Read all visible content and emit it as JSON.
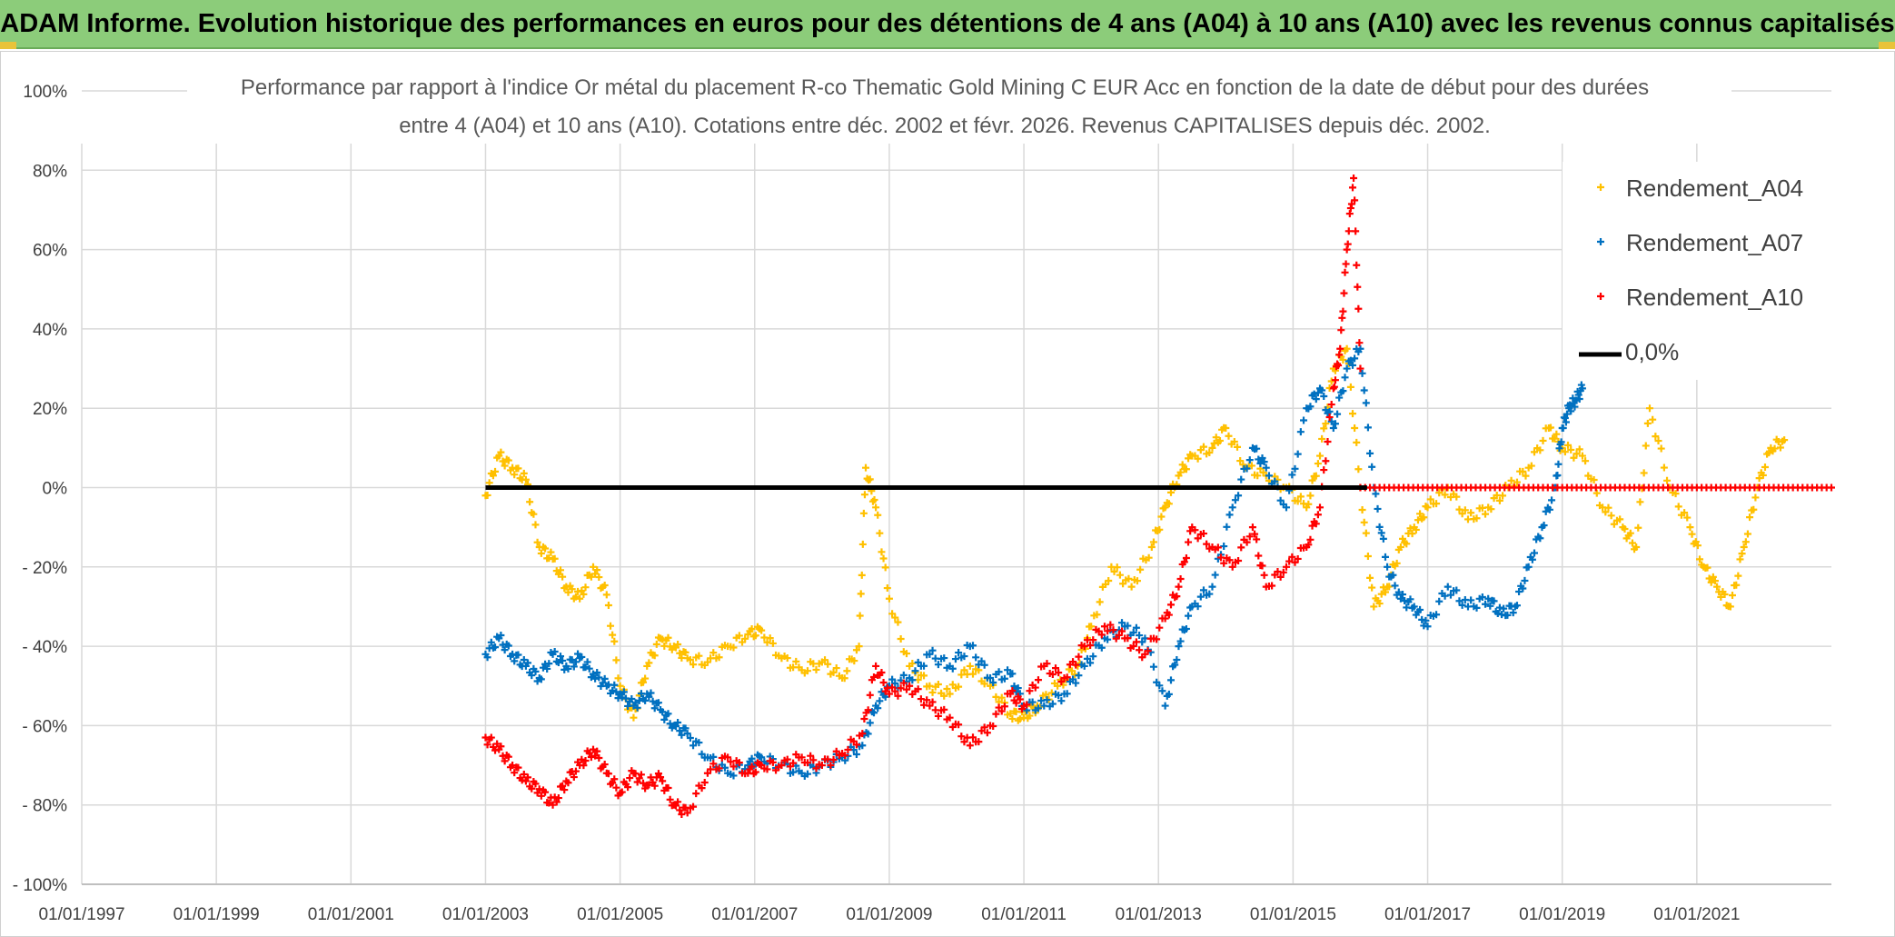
{
  "header": {
    "banner": "ADAM Informe. Evolution historique des performances en euros pour des détentions de 4 ans (A04) à 10 ans (A10) avec les revenus connus capitalisés"
  },
  "colors": {
    "a04": "#ffc000",
    "a07": "#0070c0",
    "a10": "#ff0000",
    "zero": "#000000",
    "banner": "#8ccc7a",
    "grid": "#d9d9d9"
  },
  "chart_data": {
    "type": "scatter",
    "title_lines": [
      "Performance par rapport à l'indice Or métal  du placement R-co Thematic Gold Mining C EUR Acc en fonction de la date de début pour des durées",
      "entre 4 (A04) et 10 ans (A10). Cotations entre déc. 2002 et févr. 2026. Revenus CAPITALISES depuis déc. 2002."
    ],
    "xlim": [
      1997.0,
      2023.0
    ],
    "ylim": [
      -100,
      100
    ],
    "x_ticks": [
      1997,
      1999,
      2001,
      2003,
      2005,
      2007,
      2009,
      2011,
      2013,
      2015,
      2017,
      2019,
      2021
    ],
    "x_tick_labels": [
      "01/01/1997",
      "01/01/1999",
      "01/01/2001",
      "01/01/2003",
      "01/01/2005",
      "01/01/2007",
      "01/01/2009",
      "01/01/2011",
      "01/01/2013",
      "01/01/2015",
      "01/01/2017",
      "01/01/2019",
      "01/01/2021"
    ],
    "y_ticks": [
      100,
      80,
      60,
      40,
      20,
      0,
      -20,
      -40,
      -60,
      -80,
      -100
    ],
    "y_tick_labels": [
      "100%",
      "80%",
      "60%",
      "40%",
      "20%",
      "0%",
      "- 20%",
      "- 40%",
      "- 60%",
      "- 80%",
      "- 100%"
    ],
    "legend": [
      {
        "label": "Rendement_A04",
        "key": "a04",
        "marker": "plus"
      },
      {
        "label": "Rendement_A07",
        "key": "a07",
        "marker": "plus"
      },
      {
        "label": "Rendement_A10",
        "key": "a10",
        "marker": "plus"
      },
      {
        "label": "0,0%",
        "key": "zero",
        "marker": "line"
      }
    ],
    "series": [
      {
        "name": "Rendement_A04",
        "key": "a04",
        "x": [
          2003.0,
          2003.2,
          2003.4,
          2003.6,
          2003.8,
          2004.0,
          2004.2,
          2004.4,
          2004.6,
          2004.8,
          2005.0,
          2005.2,
          2005.4,
          2005.6,
          2005.8,
          2006.0,
          2006.3,
          2006.6,
          2006.9,
          2007.1,
          2007.4,
          2007.7,
          2008.0,
          2008.3,
          2008.55,
          2008.65,
          2008.8,
          2009.0,
          2009.3,
          2009.6,
          2009.9,
          2010.2,
          2010.5,
          2010.8,
          2011.0,
          2011.2,
          2011.5,
          2011.8,
          2012.0,
          2012.3,
          2012.6,
          2012.9,
          2013.1,
          2013.3,
          2013.5,
          2013.8,
          2014.0,
          2014.3,
          2014.6,
          2014.9,
          2015.2,
          2015.4,
          2015.6,
          2015.8,
          2016.0,
          2016.2,
          2016.4,
          2016.6,
          2016.8,
          2017.0,
          2017.3,
          2017.6,
          2017.9,
          2018.2,
          2018.5,
          2018.8,
          2019.0,
          2019.3,
          2019.6,
          2019.9,
          2020.1,
          2020.3,
          2020.6,
          2020.9,
          2021.1,
          2021.3,
          2021.5,
          2021.7,
          2021.9,
          2022.1,
          2022.3
        ],
        "y": [
          -2,
          8,
          5,
          2,
          -15,
          -18,
          -25,
          -28,
          -20,
          -27,
          -50,
          -58,
          -45,
          -38,
          -40,
          -43,
          -44,
          -40,
          -37,
          -36,
          -43,
          -46,
          -44,
          -48,
          -40,
          5,
          -5,
          -28,
          -45,
          -50,
          -52,
          -45,
          -50,
          -57,
          -58,
          -55,
          -50,
          -45,
          -35,
          -20,
          -25,
          -15,
          -5,
          3,
          8,
          10,
          15,
          5,
          3,
          0,
          -5,
          8,
          30,
          35,
          0,
          -30,
          -25,
          -15,
          -10,
          -5,
          0,
          -8,
          -5,
          0,
          5,
          15,
          10,
          8,
          -5,
          -10,
          -15,
          20,
          0,
          -10,
          -20,
          -25,
          -30,
          -15,
          0,
          10,
          12
        ]
      },
      {
        "name": "Rendement_A07",
        "key": "a07",
        "x": [
          2003.0,
          2003.2,
          2003.4,
          2003.6,
          2003.8,
          2004.0,
          2004.2,
          2004.4,
          2004.6,
          2004.8,
          2005.0,
          2005.2,
          2005.4,
          2005.6,
          2005.8,
          2006.0,
          2006.3,
          2006.6,
          2006.9,
          2007.1,
          2007.4,
          2007.7,
          2008.0,
          2008.3,
          2008.6,
          2008.8,
          2009.0,
          2009.3,
          2009.6,
          2009.9,
          2010.2,
          2010.5,
          2010.8,
          2011.0,
          2011.3,
          2011.6,
          2011.9,
          2012.2,
          2012.5,
          2012.8,
          2013.1,
          2013.3,
          2013.5,
          2013.8,
          2014.1,
          2014.4,
          2014.6,
          2014.9,
          2015.2,
          2015.4,
          2015.6,
          2015.8,
          2016.0,
          2016.2,
          2016.4,
          2016.6,
          2016.8,
          2017.0,
          2017.3,
          2017.6,
          2017.9,
          2018.1,
          2018.3,
          2018.5,
          2018.7,
          2018.9,
          2019.0,
          2019.1,
          2019.2,
          2019.3
        ],
        "y": [
          -42,
          -38,
          -42,
          -45,
          -48,
          -42,
          -45,
          -43,
          -47,
          -50,
          -52,
          -55,
          -52,
          -56,
          -60,
          -62,
          -68,
          -72,
          -70,
          -68,
          -70,
          -72,
          -70,
          -68,
          -65,
          -55,
          -50,
          -48,
          -42,
          -45,
          -40,
          -48,
          -47,
          -55,
          -55,
          -52,
          -45,
          -38,
          -35,
          -38,
          -55,
          -40,
          -30,
          -25,
          -5,
          10,
          5,
          -5,
          20,
          25,
          15,
          30,
          35,
          0,
          -20,
          -28,
          -30,
          -35,
          -25,
          -30,
          -28,
          -32,
          -30,
          -20,
          -10,
          0,
          15,
          20,
          22,
          25
        ]
      },
      {
        "name": "Rendement_A10",
        "key": "a10",
        "x": [
          2003.0,
          2003.2,
          2003.4,
          2003.6,
          2003.8,
          2004.0,
          2004.2,
          2004.4,
          2004.6,
          2004.8,
          2005.0,
          2005.2,
          2005.4,
          2005.6,
          2005.8,
          2006.0,
          2006.3,
          2006.6,
          2006.9,
          2007.1,
          2007.4,
          2007.7,
          2008.0,
          2008.3,
          2008.6,
          2008.8,
          2009.0,
          2009.3,
          2009.6,
          2009.9,
          2010.2,
          2010.5,
          2010.8,
          2011.0,
          2011.3,
          2011.6,
          2011.9,
          2012.2,
          2012.5,
          2012.8,
          2013.1,
          2013.3,
          2013.5,
          2013.8,
          2014.1,
          2014.4,
          2014.6,
          2014.9,
          2015.2,
          2015.4,
          2015.6,
          2015.7,
          2015.8,
          2015.9,
          2016.0
        ],
        "y": [
          -63,
          -66,
          -70,
          -74,
          -76,
          -80,
          -74,
          -70,
          -66,
          -72,
          -77,
          -72,
          -75,
          -73,
          -80,
          -82,
          -72,
          -68,
          -72,
          -70,
          -70,
          -68,
          -70,
          -67,
          -62,
          -45,
          -52,
          -50,
          -55,
          -58,
          -65,
          -60,
          -52,
          -55,
          -45,
          -48,
          -40,
          -35,
          -38,
          -42,
          -33,
          -25,
          -10,
          -15,
          -20,
          -10,
          -25,
          -20,
          -15,
          -5,
          25,
          35,
          60,
          78,
          30
        ]
      },
      {
        "name": "Rendement_A10_flat",
        "key": "a10",
        "x": [
          2016.0,
          2016.5,
          2017.0,
          2017.5,
          2018.0,
          2018.5,
          2019.0,
          2019.5,
          2020.0,
          2020.5,
          2021.0,
          2021.5,
          2022.0,
          2022.5,
          2023.0
        ],
        "y": [
          0,
          0,
          0,
          0,
          0,
          0,
          0,
          0,
          0,
          0,
          0,
          0,
          0,
          0,
          0
        ]
      },
      {
        "name": "0,0%",
        "key": "zero",
        "x": [
          2003.0,
          2016.1
        ],
        "y": [
          0,
          0
        ]
      }
    ]
  }
}
